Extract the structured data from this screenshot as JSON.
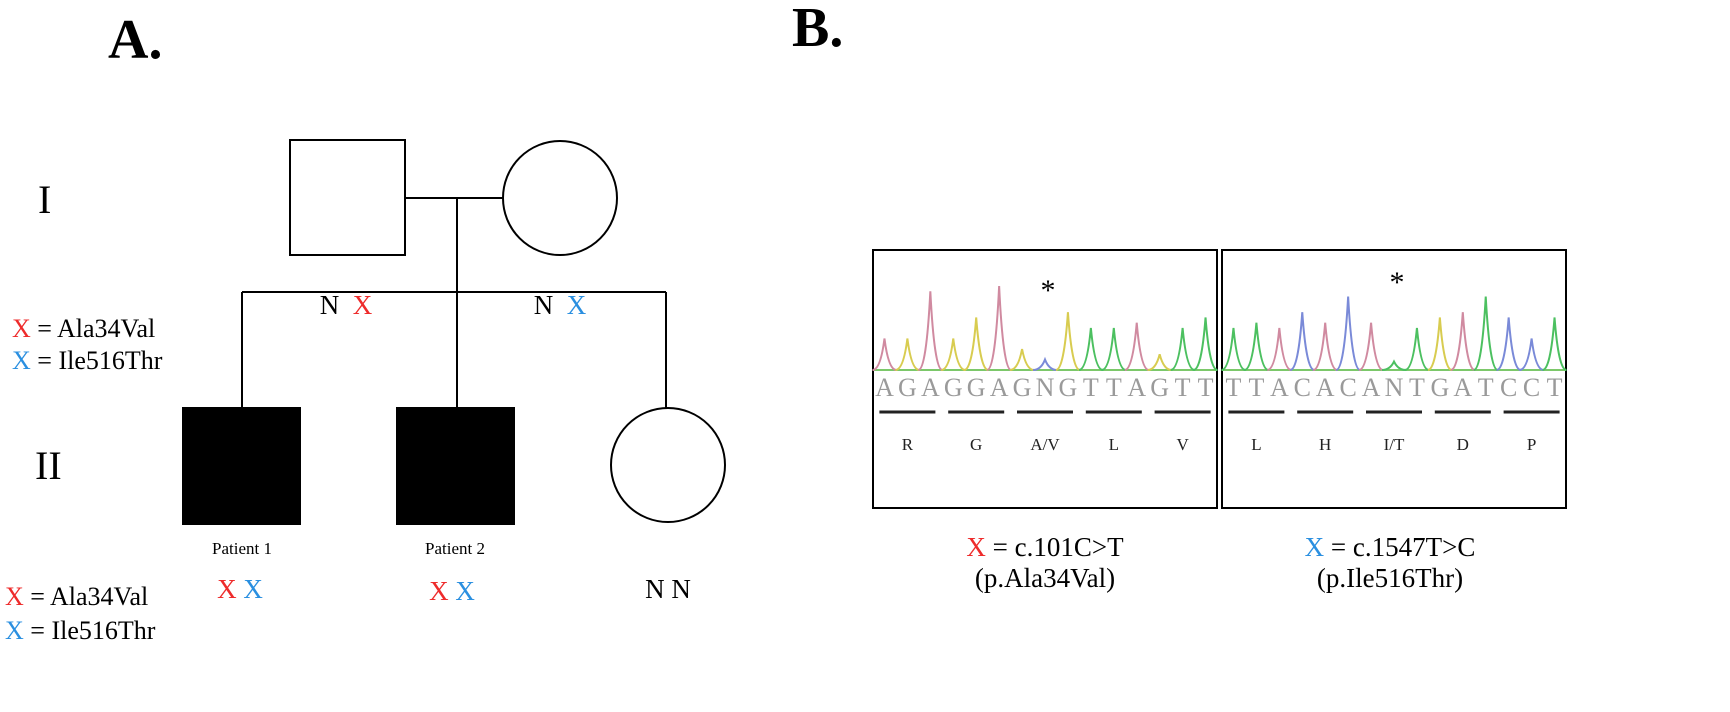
{
  "panels": {
    "a": "A.",
    "b": "B."
  },
  "generations": [
    "I",
    "II"
  ],
  "pedigree": {
    "father": {
      "sex": "male",
      "affected": false,
      "genotype": [
        "N",
        "X"
      ],
      "genotype_colors": [
        "#000000",
        "#ee2b2b"
      ]
    },
    "mother": {
      "sex": "female",
      "affected": false,
      "genotype": [
        "N",
        "X"
      ],
      "genotype_colors": [
        "#000000",
        "#2a8fe0"
      ]
    },
    "children": [
      {
        "label": "Patient 1",
        "sex": "male",
        "affected": true,
        "genotype": [
          "X",
          "X"
        ],
        "genotype_colors": [
          "#ee2b2b",
          "#2a8fe0"
        ]
      },
      {
        "label": "Patient 2",
        "sex": "male",
        "affected": true,
        "genotype": [
          "X",
          "X"
        ],
        "genotype_colors": [
          "#ee2b2b",
          "#2a8fe0"
        ]
      },
      {
        "label": "",
        "sex": "female",
        "affected": false,
        "genotype": [
          "N",
          "N"
        ],
        "genotype_colors": [
          "#000000",
          "#000000"
        ]
      }
    ]
  },
  "legend": [
    {
      "symbol": "X",
      "text": "= Ala34Val",
      "color": "#ee2b2b"
    },
    {
      "symbol": "X",
      "text": "= Ile516Thr",
      "color": "#2a8fe0"
    }
  ],
  "chromatograms": [
    {
      "marker": "*",
      "sequence": "AGAGGAGNGTTAGTT",
      "codons": [
        "R",
        "G",
        "A/V",
        "L",
        "V"
      ],
      "caption_symbol": "X",
      "caption_symbol_color": "#ee2b2b",
      "caption": "= c.101C>T",
      "protein": "(p.Ala34Val)"
    },
    {
      "marker": "*",
      "sequence": "TTACACANTGATCCT",
      "codons": [
        "L",
        "H",
        "I/T",
        "D",
        "P"
      ],
      "caption_symbol": "X",
      "caption_symbol_color": "#2a8fe0",
      "caption": "= c.1547T>C",
      "protein": "(p.Ile516Thr)"
    }
  ],
  "base_colors": {
    "A": "#d08aa0",
    "G": "#d8cc50",
    "T": "#4cc060",
    "C": "#7a8ad8"
  }
}
